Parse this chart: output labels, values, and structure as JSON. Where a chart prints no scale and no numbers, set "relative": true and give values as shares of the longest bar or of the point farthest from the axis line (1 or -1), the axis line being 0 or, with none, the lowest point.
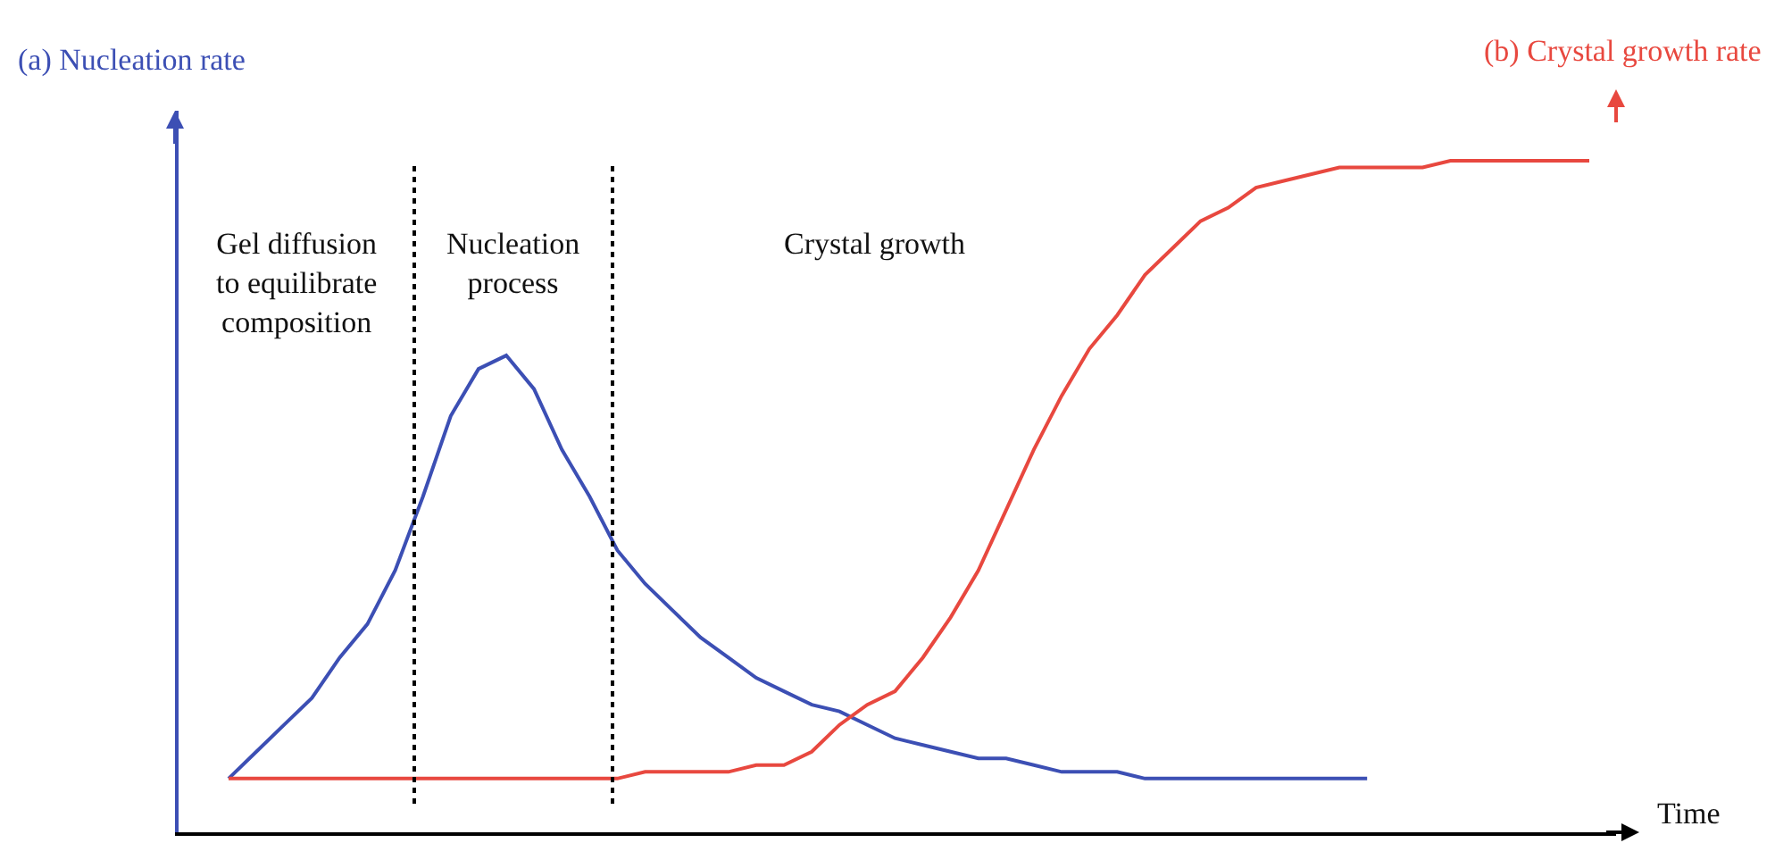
{
  "chart_data": {
    "type": "line",
    "relative": true,
    "xlabel": "Time",
    "categories": [
      null,
      null,
      null,
      null,
      null,
      null,
      null,
      null,
      null,
      null,
      null,
      null,
      null,
      null,
      null,
      null,
      null,
      null,
      null,
      null,
      null,
      null,
      null,
      null,
      null,
      null,
      null,
      null,
      null,
      null,
      null,
      null,
      null,
      null,
      null,
      null,
      null,
      null,
      null,
      null,
      null,
      null,
      null,
      null,
      null,
      null,
      null,
      null,
      null,
      null
    ],
    "series": [
      {
        "color": "#3c4fb4",
        "values": [
          0.08,
          0.12,
          0.16,
          0.2,
          0.26,
          0.31,
          0.39,
          0.5,
          0.62,
          0.69,
          0.71,
          0.66,
          0.57,
          0.5,
          0.42,
          0.37,
          0.33,
          0.29,
          0.26,
          0.23,
          0.21,
          0.19,
          0.18,
          0.16,
          0.14,
          0.13,
          0.12,
          0.11,
          0.11,
          0.1,
          0.09,
          0.09,
          0.09,
          0.08,
          0.08,
          0.08,
          0.08,
          0.08,
          0.08,
          0.08,
          0.08,
          0.08,
          null,
          null,
          null,
          null,
          null,
          null,
          null,
          null
        ]
      },
      {
        "color": "#e8483f",
        "values": [
          0.08,
          0.08,
          0.08,
          0.08,
          0.08,
          0.08,
          0.08,
          0.08,
          0.08,
          0.08,
          0.08,
          0.08,
          0.08,
          0.08,
          0.08,
          0.09,
          0.09,
          0.09,
          0.09,
          0.1,
          0.1,
          0.12,
          0.16,
          0.19,
          0.21,
          0.26,
          0.32,
          0.39,
          0.48,
          0.57,
          0.65,
          0.72,
          0.77,
          0.83,
          0.87,
          0.91,
          0.93,
          0.96,
          0.97,
          0.98,
          0.99,
          0.99,
          0.99,
          0.99,
          1,
          1,
          1,
          1,
          1,
          1
        ]
      }
    ],
    "annotations": [
      "(a) Nucleation rate",
      "(b) Crystal growth rate",
      "Gel diffusion\nto equilibrate\ncomposition",
      "Nucleation\nprocess",
      "Crystal growth"
    ],
    "grid": false
  }
}
